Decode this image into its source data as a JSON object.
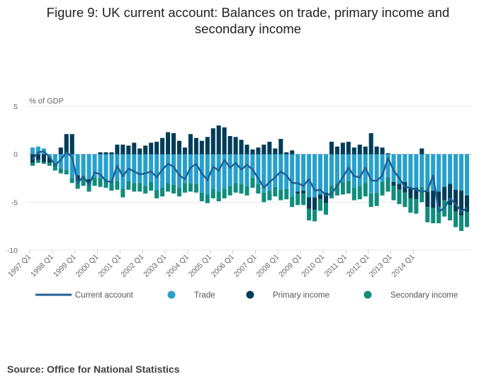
{
  "title_line1": "Figure 9: UK current account: Balances on trade, primary income and",
  "title_line2": "secondary income",
  "source": "Source: Office for National Statistics",
  "chart_data": {
    "type": "bar+line",
    "stacked": true,
    "ylabel": "% of GDP",
    "ylim": [
      -10,
      5
    ],
    "yticks": [
      5,
      0,
      -5,
      -10
    ],
    "grid": true,
    "legend_position": "bottom",
    "start_year": 1997,
    "quarters_per_year": 4,
    "xtick_labels": [
      "1997 Q1",
      "1998 Q1",
      "1999 Q1",
      "2000 Q1",
      "2001 Q1",
      "2002 Q1",
      "2003 Q1",
      "2004 Q1",
      "2005 Q1",
      "2006 Q1",
      "2007 Q1",
      "2008 Q1",
      "2009 Q1",
      "2010 Q1",
      "2011 Q1",
      "2012 Q1",
      "2013 Q1",
      "2014 Q1"
    ],
    "colors": {
      "current_account": "#206095",
      "trade": "#27a0cc",
      "primary_income": "#003c57",
      "secondary_income": "#118c7b",
      "grid": "#e8e8e8",
      "zero_line": "#bfbfbf"
    },
    "series": [
      {
        "name": "Current account",
        "key": "current",
        "type": "line",
        "values": [
          -0.5,
          0.2,
          0.3,
          -0.3,
          -1.1,
          -0.6,
          0.2,
          -0.3,
          -3.0,
          -2.3,
          -3.2,
          -1.9,
          -2.1,
          -2.8,
          -2.9,
          -1.2,
          -2.3,
          -1.5,
          -1.8,
          -2.1,
          -2.0,
          -1.8,
          -2.4,
          -1.6,
          -1.0,
          -1.3,
          -2.2,
          -2.6,
          -1.4,
          -1.0,
          -2.0,
          -2.7,
          -1.3,
          -1.7,
          -0.6,
          -1.4,
          -0.9,
          -1.6,
          -1.1,
          -1.6,
          -2.5,
          -3.5,
          -2.9,
          -2.4,
          -1.8,
          -2.2,
          -3.0,
          -3.0,
          -3.3,
          -2.6,
          -3.8,
          -3.7,
          -4.3,
          -4.1,
          -3.3,
          -2.4,
          -1.4,
          -2.3,
          -2.4,
          -1.4,
          -2.7,
          -2.8,
          -2.2,
          -0.4,
          -1.7,
          -2.5,
          -3.4,
          -3.5,
          -3.7,
          -3.9,
          -3.8,
          -2.2,
          -6.0,
          -5.6,
          -4.6,
          -5.2,
          -6.0,
          -5.6
        ]
      },
      {
        "name": "Trade",
        "key": "trade",
        "type": "bar",
        "values": [
          0.7,
          0.8,
          0.6,
          -0.3,
          -1.0,
          -1.5,
          -1.6,
          -2.5,
          -2.2,
          -2.4,
          -2.6,
          -2.4,
          -2.5,
          -2.6,
          -2.8,
          -2.8,
          -3.6,
          -2.8,
          -3.0,
          -3.0,
          -3.3,
          -2.9,
          -3.7,
          -3.5,
          -3.0,
          -3.2,
          -3.5,
          -3.0,
          -3.0,
          -3.1,
          -4.0,
          -4.2,
          -3.6,
          -3.9,
          -3.6,
          -3.3,
          -3.0,
          -3.1,
          -3.3,
          -2.5,
          -3.1,
          -4.0,
          -3.8,
          -3.4,
          -3.7,
          -3.6,
          -4.4,
          -3.9,
          -3.8,
          -4.5,
          -4.5,
          -4.2,
          -4.0,
          -3.3,
          -3.0,
          -2.9,
          -2.8,
          -3.5,
          -3.3,
          -3.0,
          -4.1,
          -4.0,
          -2.9,
          -2.4,
          -2.9,
          -3.1,
          -2.9,
          -3.5,
          -3.5,
          -3.4,
          -3.9,
          -3.8,
          -3.9,
          -3.4,
          -3.1,
          -3.7,
          -3.8,
          -4.3
        ]
      },
      {
        "name": "Primary income",
        "key": "primary",
        "type": "bar",
        "values": [
          -0.9,
          -0.6,
          -0.8,
          -0.6,
          -0.2,
          0.7,
          2.1,
          2.1,
          -0.6,
          -0.1,
          -0.5,
          0.0,
          0.2,
          0.2,
          0.2,
          1.0,
          1.0,
          0.9,
          1.2,
          0.6,
          0.9,
          1.2,
          1.3,
          1.7,
          2.3,
          2.2,
          1.4,
          0.7,
          2.1,
          1.7,
          1.4,
          1.8,
          2.7,
          3.0,
          2.8,
          1.9,
          1.8,
          1.5,
          1.0,
          0.5,
          0.7,
          1.0,
          1.3,
          0.6,
          1.6,
          0.2,
          0.4,
          -0.2,
          -0.3,
          -1.2,
          -1.3,
          -0.5,
          -1.1,
          1.3,
          0.8,
          1.2,
          1.3,
          0.7,
          1.0,
          0.8,
          2.2,
          0.8,
          0.7,
          0.1,
          -0.4,
          -0.6,
          -1.1,
          -1.1,
          -1.2,
          0.6,
          -1.6,
          -1.8,
          -1.6,
          -1.4,
          -2.2,
          -2.3,
          -2.6,
          -1.7
        ]
      },
      {
        "name": "Secondary income",
        "key": "secondary",
        "type": "bar",
        "values": [
          -0.3,
          -0.3,
          -0.2,
          -0.3,
          -0.5,
          -0.5,
          -0.5,
          -0.5,
          -0.8,
          -0.8,
          -0.8,
          -0.9,
          -0.9,
          -0.9,
          -1.0,
          -0.9,
          -0.9,
          -0.9,
          -0.9,
          -0.9,
          -0.8,
          -0.9,
          -0.9,
          -0.9,
          -0.9,
          -0.9,
          -0.9,
          -1.0,
          -0.9,
          -0.9,
          -0.9,
          -0.9,
          -1.0,
          -1.0,
          -1.0,
          -1.0,
          -1.0,
          -1.0,
          -1.0,
          -1.0,
          -1.0,
          -1.0,
          -1.0,
          -1.0,
          -1.1,
          -1.1,
          -1.1,
          -1.2,
          -1.2,
          -1.2,
          -1.2,
          -1.2,
          -1.2,
          -1.3,
          -1.3,
          -1.3,
          -1.3,
          -1.3,
          -1.4,
          -1.4,
          -1.4,
          -1.4,
          -1.4,
          -1.5,
          -1.5,
          -1.5,
          -1.5,
          -1.5,
          -1.5,
          -1.6,
          -1.6,
          -1.6,
          -1.7,
          -1.7,
          -1.6,
          -1.6,
          -1.6,
          -1.6
        ]
      }
    ]
  }
}
